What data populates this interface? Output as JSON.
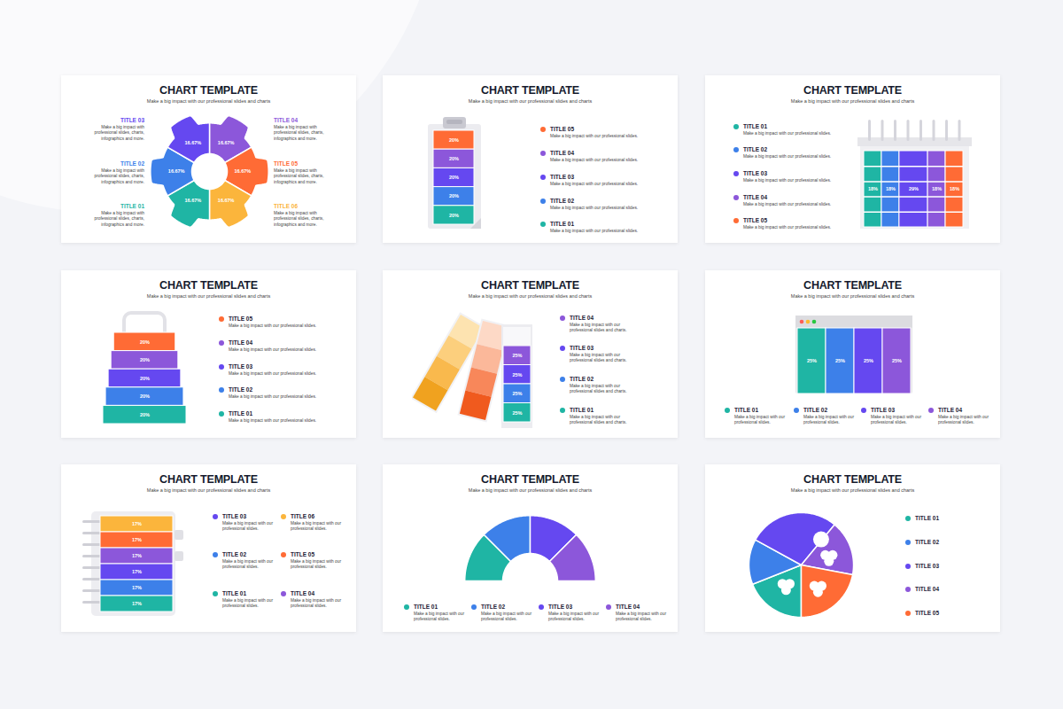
{
  "chart_data": [
    {
      "type": "donut",
      "title": "CHART TEMPLATE",
      "subtitle": "Make a big impact with our professional slides and charts",
      "categories": [
        "TITLE 04",
        "TITLE 05",
        "TITLE 06",
        "TITLE 01",
        "TITLE 02",
        "TITLE 03"
      ],
      "values": [
        16.67,
        16.67,
        16.67,
        16.67,
        16.67,
        16.67
      ],
      "value_labels": [
        "16.67%",
        "16.67%",
        "16.67%",
        "16.67%",
        "16.67%",
        "16.67%"
      ],
      "colors": [
        "#8c57da",
        "#ff6b35",
        "#fbb53c",
        "#1fb5a4",
        "#3d80e9",
        "#6548f0"
      ],
      "descriptions": [
        "Make a big impact with professional slides, charts, infographics and more.",
        "Make a big impact with professional slides, charts, infographics and more.",
        "Make a big impact with professional slides, charts, infographics and more.",
        "Make a big impact with professional slides, charts, infographics and more.",
        "Make a big impact with professional slides, charts, infographics and more.",
        "Make a big impact with professional slides, charts, infographics and more."
      ],
      "data_labels": true,
      "tick_labels": false
    },
    {
      "type": "bar",
      "title": "CHART TEMPLATE",
      "subtitle": "Make a big impact with our professional slides and charts",
      "categories": [
        "TITLE 05",
        "TITLE 04",
        "TITLE 03",
        "TITLE 02",
        "TITLE 01"
      ],
      "values": [
        20,
        20,
        20,
        20,
        20
      ],
      "value_labels": [
        "20%",
        "20%",
        "20%",
        "20%",
        "20%"
      ],
      "colors": [
        "#ff6b35",
        "#8c57da",
        "#6548f0",
        "#3d80e9",
        "#1fb5a4"
      ],
      "descriptions": [
        "Make a big impact with our professional slides.",
        "Make a big impact with our professional slides.",
        "Make a big impact with our professional slides.",
        "Make a big impact with our professional slides.",
        "Make a big impact with our professional slides."
      ],
      "stacked": true,
      "data_labels": true,
      "tick_labels": false
    },
    {
      "type": "bar",
      "title": "CHART TEMPLATE",
      "subtitle": "Make a big impact with our professional slides and charts",
      "categories": [
        "TITLE 01",
        "TITLE 02",
        "TITLE 03",
        "TITLE 04",
        "TITLE 05"
      ],
      "values": [
        18,
        18,
        29,
        18,
        18
      ],
      "value_labels": [
        "18%",
        "18%",
        "29%",
        "18%",
        "18%"
      ],
      "colors": [
        "#1fb5a4",
        "#3d80e9",
        "#6548f0",
        "#8c57da",
        "#ff6b35"
      ],
      "descriptions": [
        "Make a big impact with our professional slides.",
        "Make a big impact with our professional slides.",
        "Make a big impact with our professional slides.",
        "Make a big impact with our professional slides.",
        "Make a big impact with our professional slides."
      ],
      "orientation": "horizontal",
      "stacked": true,
      "data_labels": true,
      "tick_labels": false
    },
    {
      "type": "bar",
      "title": "CHART TEMPLATE",
      "subtitle": "Make a big impact with our professional slides and charts",
      "categories": [
        "TITLE 05",
        "TITLE 04",
        "TITLE 03",
        "TITLE 02",
        "TITLE 01"
      ],
      "values": [
        20,
        20,
        20,
        20,
        20
      ],
      "value_labels": [
        "20%",
        "20%",
        "20%",
        "20%",
        "20%"
      ],
      "colors": [
        "#ff6b35",
        "#8c57da",
        "#6548f0",
        "#3d80e9",
        "#1fb5a4"
      ],
      "descriptions": [
        "Make a big impact with our professional slides.",
        "Make a big impact with our professional slides.",
        "Make a big impact with our professional slides.",
        "Make a big impact with our professional slides.",
        "Make a big impact with our professional slides."
      ],
      "stacked": true,
      "data_labels": true,
      "tick_labels": false
    },
    {
      "type": "bar",
      "title": "CHART TEMPLATE",
      "subtitle": "Make a big impact with our professional slides and charts",
      "categories": [
        "TITLE 04",
        "TITLE 03",
        "TITLE 02",
        "TITLE 01"
      ],
      "values": [
        25,
        25,
        25,
        25
      ],
      "value_labels": [
        "25%",
        "25%",
        "25%",
        "25%"
      ],
      "colors": [
        "#8c57da",
        "#6548f0",
        "#3d80e9",
        "#1fb5a4"
      ],
      "descriptions": [
        "Make a big impact with our professional slides and charts.",
        "Make a big impact with our professional slides and charts.",
        "Make a big impact with our professional slides and charts.",
        "Make a big impact with our professional slides and charts."
      ],
      "stacked": true,
      "data_labels": true,
      "tick_labels": false
    },
    {
      "type": "bar",
      "title": "CHART TEMPLATE",
      "subtitle": "Make a big impact with our professional slides and charts",
      "categories": [
        "TITLE 01",
        "TITLE 02",
        "TITLE 03",
        "TITLE 04"
      ],
      "values": [
        25,
        25,
        25,
        25
      ],
      "value_labels": [
        "25%",
        "25%",
        "25%",
        "25%"
      ],
      "colors": [
        "#1fb5a4",
        "#3d80e9",
        "#6548f0",
        "#8c57da"
      ],
      "descriptions": [
        "Make a big impact with our professional slides.",
        "Make a big impact with our professional slides.",
        "Make a big impact with our professional slides.",
        "Make a big impact with our professional slides."
      ],
      "orientation": "horizontal",
      "stacked": true,
      "data_labels": true,
      "tick_labels": false
    },
    {
      "type": "bar",
      "title": "CHART TEMPLATE",
      "subtitle": "Make a big impact with our professional slides and charts",
      "categories": [
        "TITLE 06",
        "TITLE 05",
        "TITLE 04",
        "TITLE 03",
        "TITLE 02",
        "TITLE 01"
      ],
      "values": [
        17,
        17,
        17,
        17,
        17,
        17
      ],
      "value_labels": [
        "17%",
        "17%",
        "17%",
        "17%",
        "17%",
        "17%"
      ],
      "colors": [
        "#fbb53c",
        "#ff6b35",
        "#8c57da",
        "#6548f0",
        "#3d80e9",
        "#1fb5a4"
      ],
      "descriptions": [
        "Make a big impact with our professional slides.",
        "Make a big impact with our professional slides.",
        "Make a big impact with our professional slides.",
        "Make a big impact with our professional slides.",
        "Make a big impact with our professional slides.",
        "Make a big impact with our professional slides."
      ],
      "stacked": true,
      "data_labels": true,
      "tick_labels": false
    },
    {
      "type": "semi_donut",
      "title": "CHART TEMPLATE",
      "subtitle": "Make a big impact with our professional slides and charts",
      "categories": [
        "TITLE 01",
        "TITLE 02",
        "TITLE 03",
        "TITLE 04"
      ],
      "values": [
        25,
        25,
        25,
        25
      ],
      "colors": [
        "#1fb5a4",
        "#3d80e9",
        "#6548f0",
        "#8c57da"
      ],
      "descriptions": [
        "Make a big impact with our professional slides.",
        "Make a big impact with our professional slides.",
        "Make a big impact with our professional slides.",
        "Make a big impact with our professional slides."
      ],
      "data_labels": false,
      "tick_labels": false
    },
    {
      "type": "pie",
      "title": "CHART TEMPLATE",
      "subtitle": "Make a big impact with our professional slides and charts",
      "categories": [
        "TITLE 01",
        "TITLE 02",
        "TITLE 03",
        "TITLE 04",
        "TITLE 05"
      ],
      "values": [
        19,
        14,
        28,
        17,
        22
      ],
      "colors": [
        "#1fb5a4",
        "#3d80e9",
        "#6548f0",
        "#8c57da",
        "#ff6b35"
      ],
      "data_labels": false,
      "tick_labels": false
    }
  ]
}
